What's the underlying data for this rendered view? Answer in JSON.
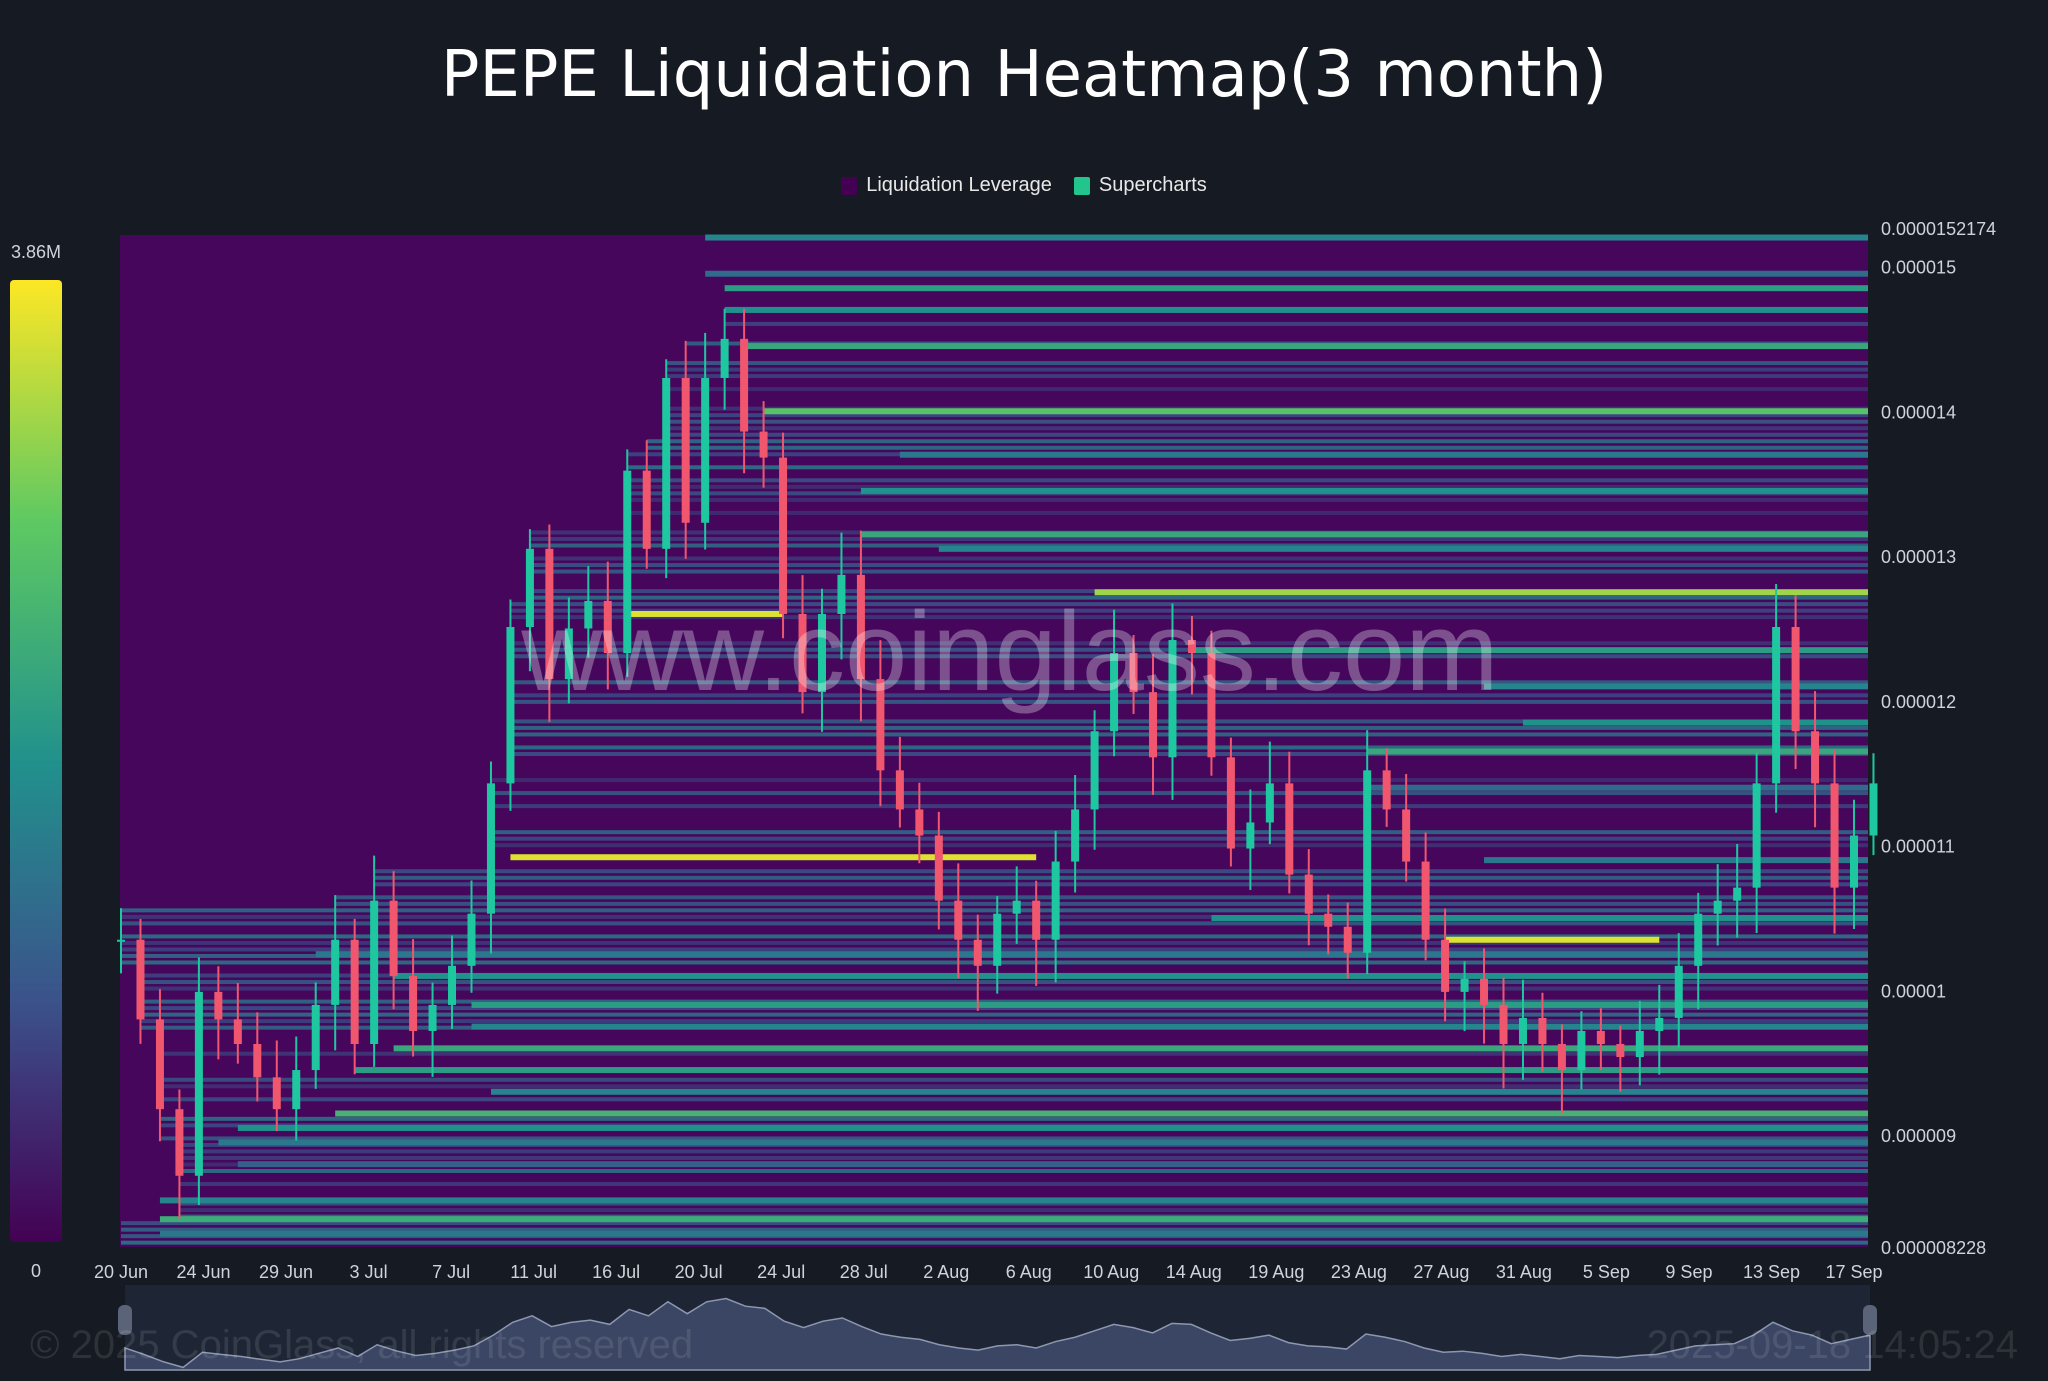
{
  "title": "PEPE Liquidation Heatmap(3 month)",
  "legend": [
    {
      "label": "Liquidation Leverage",
      "color": "#440154"
    },
    {
      "label": "Supercharts",
      "color": "#22c58b"
    }
  ],
  "colorbar": {
    "max_label": "3.86M",
    "min_label": "0",
    "colors": [
      "#440154",
      "#3b528b",
      "#21918c",
      "#5ec962",
      "#fde725"
    ]
  },
  "watermark": "www.coinglass.com",
  "footer": {
    "copyright": "© 2025 CoinGlass, all rights reserved",
    "timestamp": "2025-09-18 14:05:24"
  },
  "chart_data": {
    "type": "heatmap",
    "title": "PEPE Liquidation Heatmap(3 month)",
    "x_tick_labels": [
      "20 Jun",
      "24 Jun",
      "29 Jun",
      "3 Jul",
      "7 Jul",
      "11 Jul",
      "16 Jul",
      "20 Jul",
      "24 Jul",
      "28 Jul",
      "2 Aug",
      "6 Aug",
      "10 Aug",
      "14 Aug",
      "19 Aug",
      "23 Aug",
      "27 Aug",
      "31 Aug",
      "5 Sep",
      "9 Sep",
      "13 Sep",
      "17 Sep"
    ],
    "y_tick_labels": [
      "0.0000152174",
      "0.000015",
      "0.000014",
      "0.000013",
      "0.000012",
      "0.000011",
      "0.00001",
      "0.000009",
      "0.000008228"
    ],
    "y_ticks": [
      1.52174e-05,
      1.5e-05,
      1.4e-05,
      1.3e-05,
      1.2e-05,
      1.1e-05,
      1e-05,
      9e-06,
      8.228e-06
    ],
    "ylim": [
      8.228e-06,
      1.52174e-05
    ],
    "x_range": [
      "20 Jun",
      "18 Sep"
    ],
    "price_unit": "1e-6",
    "price_daily_close": [
      10.35,
      9.8,
      9.18,
      8.72,
      9.99,
      9.8,
      9.63,
      9.4,
      9.18,
      9.45,
      9.9,
      10.35,
      9.63,
      10.62,
      10.1,
      9.72,
      9.9,
      10.17,
      10.53,
      11.43,
      12.51,
      13.05,
      12.15,
      12.5,
      12.69,
      12.33,
      13.59,
      13.05,
      14.23,
      13.23,
      14.23,
      14.5,
      13.86,
      13.68,
      12.6,
      12.06,
      12.6,
      12.87,
      12.15,
      11.52,
      11.25,
      11.07,
      10.62,
      10.35,
      10.17,
      10.53,
      10.62,
      10.35,
      10.89,
      11.25,
      11.79,
      12.33,
      12.06,
      11.61,
      12.42,
      12.33,
      11.61,
      10.98,
      11.16,
      11.43,
      10.8,
      10.53,
      10.44,
      10.26,
      11.52,
      11.25,
      10.89,
      10.35,
      9.99,
      10.08,
      9.9,
      9.63,
      9.81,
      9.63,
      9.45,
      9.72,
      9.63,
      9.54,
      9.72,
      9.81,
      10.17,
      10.53,
      10.62,
      10.71,
      11.43,
      12.51,
      11.79,
      11.43,
      10.71,
      11.07,
      11.43
    ],
    "key_levels": [
      {
        "price": 15.2,
        "from_day": 30,
        "intensity": 0.45
      },
      {
        "price": 14.95,
        "from_day": 30,
        "intensity": 0.35
      },
      {
        "price": 14.85,
        "from_day": 31,
        "intensity": 0.55
      },
      {
        "price": 14.7,
        "from_day": 31,
        "intensity": 0.5
      },
      {
        "price": 14.45,
        "from_day": 32,
        "intensity": 0.6
      },
      {
        "price": 14.0,
        "from_day": 33,
        "intensity": 0.72
      },
      {
        "price": 13.7,
        "from_day": 40,
        "intensity": 0.4
      },
      {
        "price": 13.45,
        "from_day": 38,
        "intensity": 0.5
      },
      {
        "price": 13.15,
        "from_day": 38,
        "intensity": 0.6
      },
      {
        "price": 13.05,
        "from_day": 42,
        "intensity": 0.45
      },
      {
        "price": 12.75,
        "from_day": 50,
        "intensity": 0.85
      },
      {
        "price": 12.6,
        "from_day": 26,
        "to_day": 34,
        "intensity": 0.95
      },
      {
        "price": 12.35,
        "from_day": 55,
        "intensity": 0.55
      },
      {
        "price": 12.1,
        "from_day": 70,
        "intensity": 0.45
      },
      {
        "price": 11.85,
        "from_day": 72,
        "intensity": 0.5
      },
      {
        "price": 11.65,
        "from_day": 64,
        "intensity": 0.6
      },
      {
        "price": 11.4,
        "from_day": 64,
        "intensity": 0.35
      },
      {
        "price": 10.92,
        "from_day": 20,
        "to_day": 47,
        "intensity": 0.95
      },
      {
        "price": 10.9,
        "from_day": 70,
        "intensity": 0.4
      },
      {
        "price": 10.5,
        "from_day": 56,
        "intensity": 0.5
      },
      {
        "price": 10.35,
        "from_day": 68,
        "to_day": 79,
        "intensity": 0.95
      },
      {
        "price": 10.25,
        "from_day": 10,
        "intensity": 0.4
      },
      {
        "price": 10.1,
        "from_day": 14,
        "intensity": 0.5
      },
      {
        "price": 9.9,
        "from_day": 18,
        "intensity": 0.55
      },
      {
        "price": 9.75,
        "from_day": 18,
        "intensity": 0.45
      },
      {
        "price": 9.6,
        "from_day": 14,
        "intensity": 0.6
      },
      {
        "price": 9.45,
        "from_day": 12,
        "intensity": 0.55
      },
      {
        "price": 9.3,
        "from_day": 19,
        "intensity": 0.45
      },
      {
        "price": 9.15,
        "from_day": 11,
        "intensity": 0.65
      },
      {
        "price": 9.05,
        "from_day": 6,
        "intensity": 0.5
      },
      {
        "price": 8.95,
        "from_day": 5,
        "intensity": 0.4
      },
      {
        "price": 8.8,
        "from_day": 6,
        "intensity": 0.3
      },
      {
        "price": 8.55,
        "from_day": 2,
        "intensity": 0.45
      },
      {
        "price": 8.42,
        "from_day": 2,
        "intensity": 0.62
      },
      {
        "price": 8.32,
        "from_day": 2,
        "intensity": 0.4
      }
    ],
    "grid": false,
    "legend_position": "top-center"
  }
}
